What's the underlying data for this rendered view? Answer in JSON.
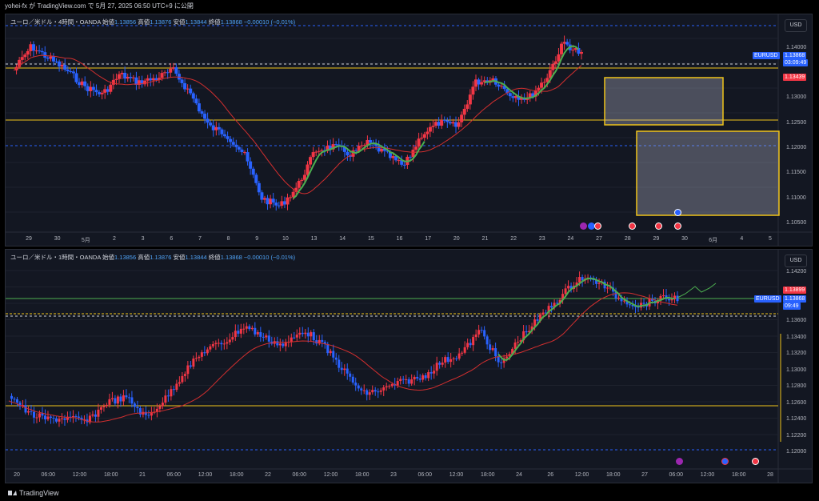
{
  "header": {
    "publish_line": "yohei-fx が TradingView.com で 5月 27, 2025 06:50 UTC+9 に公開"
  },
  "footer": {
    "brand": "TradingView"
  },
  "top_chart": {
    "symbol_line": "ユーロ／米ドル・4時間・OANDA",
    "ohlc": [
      {
        "k": "始値",
        "v": "1.13856"
      },
      {
        "k": "高値",
        "v": "1.13876"
      },
      {
        "k": "安値",
        "v": "1.13844"
      },
      {
        "k": "終値",
        "v": "1.13868"
      }
    ],
    "change": "−0.00010 (−0.01%)",
    "currency": "USD",
    "price_axis": [
      "1.14000",
      "1.13000",
      "1.12500",
      "1.12000",
      "1.11500",
      "1.11000",
      "1.10500"
    ],
    "symbol_tag": "EURUSD",
    "last_price": "1.13868",
    "countdown": "03:09:49",
    "red_tag": "1.13439",
    "time_axis": [
      "29",
      "30",
      "5月",
      "2",
      "3",
      "6",
      "7",
      "8",
      "9",
      "10",
      "13",
      "14",
      "15",
      "16",
      "17",
      "20",
      "21",
      "22",
      "23",
      "24",
      "27",
      "28",
      "29",
      "30",
      "6月",
      "4",
      "5"
    ],
    "colors": {
      "up": "#f23645",
      "down": "#2962ff",
      "ma": "#d32f2f",
      "spline": "#4caf50",
      "hline": "#f0c419",
      "accent": "#2962ff"
    }
  },
  "bottom_chart": {
    "symbol_line": "ユーロ／米ドル・1時間・OANDA",
    "ohlc": [
      {
        "k": "始値",
        "v": "1.13856"
      },
      {
        "k": "高値",
        "v": "1.13876"
      },
      {
        "k": "安値",
        "v": "1.13844"
      },
      {
        "k": "終値",
        "v": "1.13868"
      }
    ],
    "change": "−0.00010 (−0.01%)",
    "currency": "USD",
    "price_axis": [
      "1.14200",
      "1.13600",
      "1.13400",
      "1.13200",
      "1.13000",
      "1.12800",
      "1.12600",
      "1.12400",
      "1.12200",
      "1.12000"
    ],
    "symbol_tag": "EURUSD",
    "last_price": "1.13868",
    "countdown": "09:49",
    "red_tag": "1.13899",
    "time_axis": [
      "20",
      "06:00",
      "12:00",
      "18:00",
      "21",
      "06:00",
      "12:00",
      "18:00",
      "22",
      "06:00",
      "12:00",
      "18:00",
      "23",
      "06:00",
      "12:00",
      "18:00",
      "24",
      "26",
      "12:00",
      "18:00",
      "27",
      "06:00",
      "12:00",
      "18:00",
      "28"
    ]
  }
}
